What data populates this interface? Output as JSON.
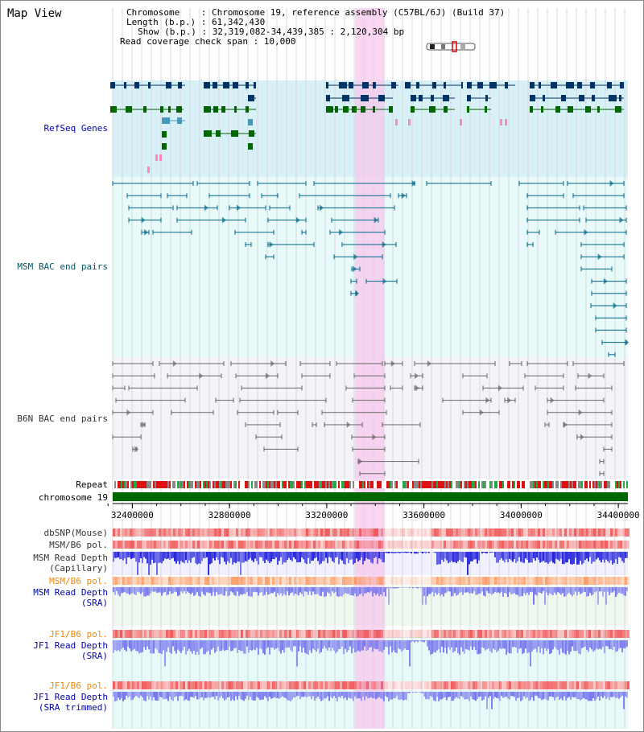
{
  "view": {
    "title": "Map View"
  },
  "header": {
    "line_chromosome": "Chromosome    : Chromosome 19, reference assembly (C57BL/6J) (Build 37)",
    "line_length": "Length (b.p.) : 61,342,430",
    "line_show": "Show (b.p.) : 32,319,082-34,439,385 : 2,120,304 bp",
    "line_span": "Read coverage check span : 10,000"
  },
  "tracks": {
    "refseq": "RefSeq Genes",
    "msm_bac": "MSM BAC end pairs",
    "b6n_bac": "B6N BAC end pairs",
    "repeat": "Repeat",
    "chromosome": "chromosome 19",
    "dbsnp": "dbSNP(Mouse)",
    "msm_b6_pol_1": "MSM/B6 pol.",
    "msm_depth_cap": "MSM Read Depth\n(Capillary)",
    "msm_b6_pol_2": "MSM/B6 pol.",
    "msm_depth_sra": "MSM Read Depth\n(SRA)",
    "jf1_b6_pol_1": "JF1/B6 pol.",
    "jf1_depth_sra": "JF1 Read Depth\n(SRA)",
    "jf1_b6_pol_2": "JF1/B6 pol.",
    "jf1_depth_trim": "JF1 Read Depth\n(SRA trimmed)"
  },
  "axis": {
    "ticks": [
      "32400000",
      "32800000",
      "33200000",
      "33600000",
      "34000000",
      "34400000"
    ],
    "range": [
      32319082,
      34439385
    ]
  },
  "colors": {
    "highlight": "#f7c8ee",
    "refseq_bg": "#d8f0f8",
    "msm_bg": "#e8fafa",
    "b6n_bg": "#f4f4f8",
    "gene_navy": "#003366",
    "gene_blue": "#4499bb",
    "gene_green": "#006600",
    "msm_line": "#006688",
    "b6n_line": "#666666",
    "depth_blue": "#2222dd",
    "depth_light": "#7777ee",
    "pol_red": "#ee3333",
    "chromosome_green": "#006600"
  }
}
